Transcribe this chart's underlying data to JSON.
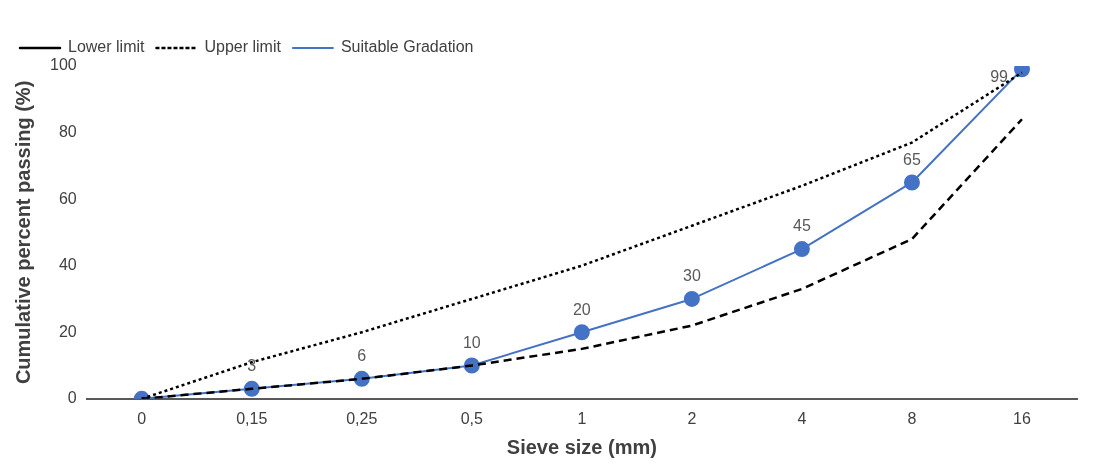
{
  "chart_data": {
    "type": "line",
    "xlabel": "Sieve size (mm)",
    "ylabel": "Cumulative percent passing (%)",
    "categories": [
      "0",
      "0,15",
      "0,25",
      "0,5",
      "1",
      "2",
      "4",
      "8",
      "16"
    ],
    "series": [
      {
        "name": "Suitable Gradation",
        "color": "#4472c4",
        "values": [
          0,
          3,
          6,
          10,
          20,
          30,
          45,
          65,
          99
        ],
        "marker": "circle",
        "line_style": "solid",
        "value_labels": [
          null,
          "3",
          "6",
          "10",
          "20",
          "30",
          "45",
          "65",
          "99"
        ]
      },
      {
        "name": "Lower limit",
        "color": "#000000",
        "values": [
          0,
          3,
          6,
          10,
          15,
          22,
          33,
          48,
          84
        ],
        "marker": "none",
        "line_style": "dashed"
      },
      {
        "name": "Upper limit",
        "color": "#000000",
        "values": [
          0,
          11,
          20,
          30,
          40,
          52,
          64,
          77,
          98
        ],
        "marker": "none",
        "line_style": "dotted"
      }
    ],
    "ylim": [
      0,
      100
    ],
    "yticks": [
      0,
      20,
      40,
      60,
      80,
      100
    ],
    "grid": false,
    "legend": "top left"
  }
}
